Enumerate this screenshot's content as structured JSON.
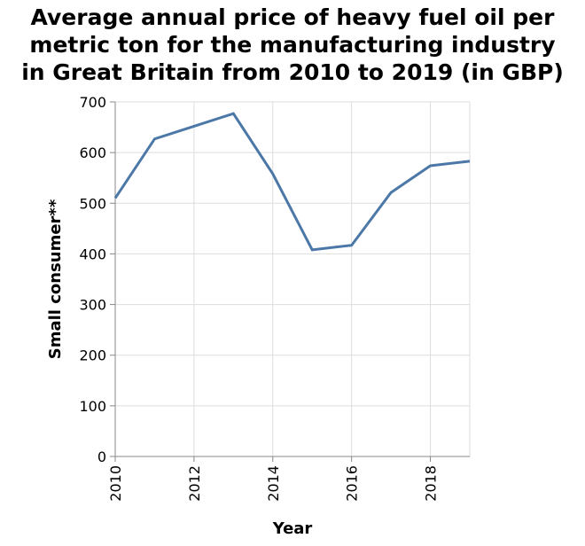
{
  "chart_data": {
    "type": "line",
    "title_lines": [
      "Average annual price of heavy fuel oil per",
      "metric ton for the manufacturing industry",
      "in Great Britain from 2010 to 2019 (in GBP)"
    ],
    "xlabel": "Year",
    "ylabel": "Small consumer**",
    "x": [
      2010,
      2011,
      2012,
      2013,
      2014,
      2015,
      2016,
      2017,
      2018,
      2019
    ],
    "series": [
      {
        "values": [
          510,
          627,
          652,
          677,
          558,
          408,
          417,
          521,
          574,
          583
        ]
      }
    ],
    "xlim": [
      2010,
      2019
    ],
    "ylim": [
      0,
      700
    ],
    "xticks": [
      2010,
      2012,
      2014,
      2016,
      2018
    ],
    "yticks": [
      0,
      100,
      200,
      300,
      400,
      500,
      600,
      700
    ],
    "grid": true,
    "line_color": "#4c78a8"
  }
}
